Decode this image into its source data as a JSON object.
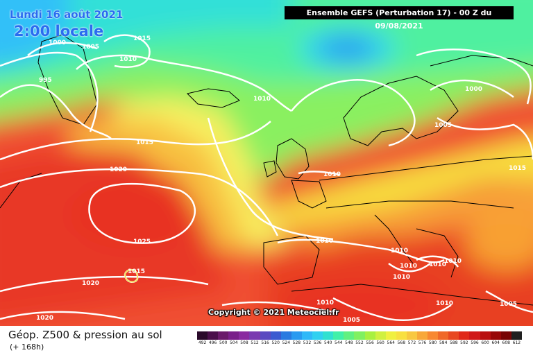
{
  "header": {
    "date": "Lundi 16 août 2021",
    "time": "2:00 locale",
    "run": "Ensemble GEFS  (Perturbation 17)  -  00 Z du 09/08/2021"
  },
  "copyright": "Copyright © 2021 Meteociel.fr",
  "footer": {
    "field": "Géop. Z500 & pression au sol",
    "step": "(+ 168h)"
  },
  "scale": {
    "values": [
      "492",
      "496",
      "500",
      "504",
      "508",
      "512",
      "516",
      "520",
      "524",
      "528",
      "532",
      "536",
      "540",
      "544",
      "548",
      "552",
      "556",
      "560",
      "564",
      "568",
      "572",
      "576",
      "580",
      "584",
      "588",
      "592",
      "596",
      "600",
      "604",
      "608",
      "612"
    ],
    "colors": [
      "#2a0a2a",
      "#4a0f4a",
      "#6a1a6a",
      "#7a1f8a",
      "#8a2aa0",
      "#7a3ab0",
      "#5a4ac0",
      "#3a5ad0",
      "#2a7ae0",
      "#2a9af0",
      "#30b8f8",
      "#30d0f0",
      "#30e0d0",
      "#40f0a8",
      "#60f080",
      "#80f060",
      "#a8f040",
      "#d0f040",
      "#f0f040",
      "#f8e040",
      "#f8c840",
      "#f8a838",
      "#f88830",
      "#f06828",
      "#e84820",
      "#e02818",
      "#d01818",
      "#b81010",
      "#980808",
      "#780404",
      "#202020"
    ]
  },
  "isobars": [
    "1015",
    "1000",
    "1005",
    "1010",
    "995",
    "1010",
    "1000",
    "1005",
    "1015",
    "1015",
    "1020",
    "1010",
    "1010",
    "1025",
    "1010",
    "1010",
    "1015",
    "1010",
    "1010",
    "1020",
    "1010",
    "1010",
    "1020",
    "1005",
    "1010",
    "1005"
  ],
  "colors": {
    "isobar": "#ffffff",
    "coast": "#000000",
    "label_blue": "#2a6cf0"
  }
}
